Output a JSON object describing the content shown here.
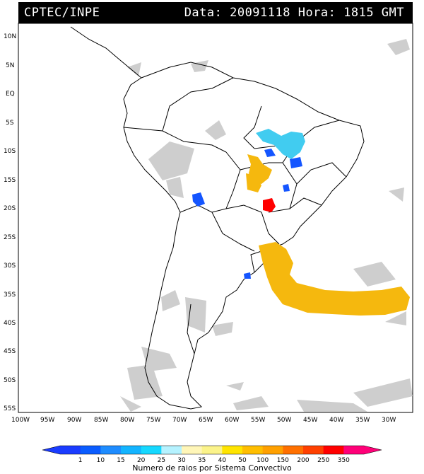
{
  "header": {
    "left": "CPTEC/INPE",
    "right": "Data: 20091118 Hora: 1815 GMT"
  },
  "lat_labels": [
    "10N",
    "5N",
    "EQ",
    "5S",
    "10S",
    "15S",
    "20S",
    "25S",
    "30S",
    "35S",
    "40S",
    "45S",
    "50S",
    "55S"
  ],
  "lon_labels": [
    "100W",
    "95W",
    "90W",
    "85W",
    "80W",
    "75W",
    "70W",
    "65W",
    "60W",
    "55W",
    "50W",
    "45W",
    "40W",
    "35W",
    "30W"
  ],
  "legend": {
    "title": "Numero de raios por Sistema Convectivo",
    "values": [
      "1",
      "10",
      "15",
      "20",
      "25",
      "30",
      "35",
      "40",
      "50",
      "100",
      "150",
      "200",
      "250",
      "350"
    ],
    "colors": [
      "#1a3cff",
      "#0a5cff",
      "#1e8cff",
      "#13b4ff",
      "#15d8ff",
      "#b5f2ff",
      "#fff6b8",
      "#fbf38a",
      "#ffe400",
      "#ffbe00",
      "#ffa000",
      "#ff7000",
      "#ff4000",
      "#ff0000",
      "#ff0078"
    ]
  },
  "colors": {
    "cloud": "#c9c9c9",
    "cyan": "#41ccf0",
    "blue": "#1455ff",
    "orange": "#f5b80e",
    "red": "#ff0000"
  }
}
